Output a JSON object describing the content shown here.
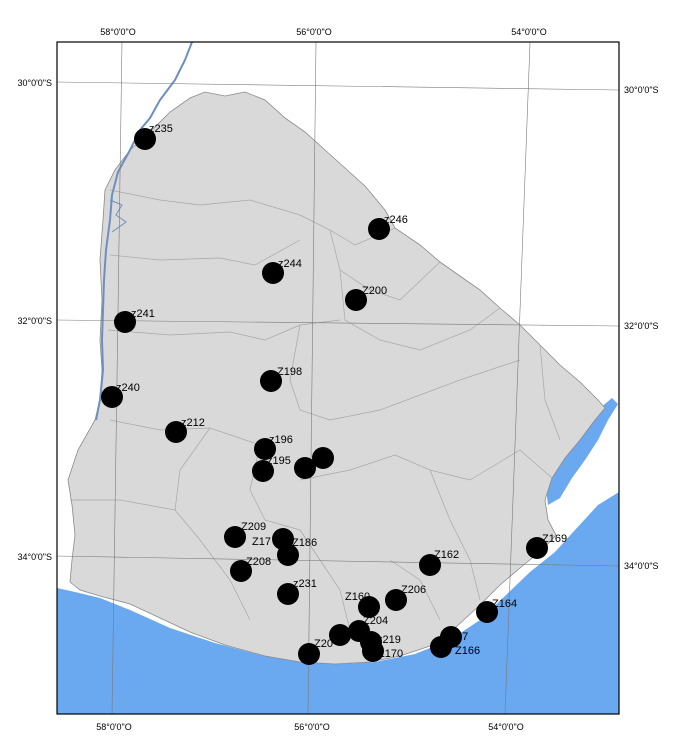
{
  "map": {
    "colors": {
      "water": "#6aa8f0",
      "land": "#d9d9d9",
      "outside": "#ffffff",
      "border": "#8a8a8a",
      "river": "#6d8fbf",
      "frame": "#000000",
      "marker": "#000000"
    },
    "ticks": {
      "top": [
        "58°0'0\"O",
        "56°0'0\"O",
        "54°0'0\"O"
      ],
      "bottom": [
        "58°0'0\"O",
        "56°0'0\"O",
        "54°0'0\"O"
      ],
      "left": [
        "30°0'0\"S",
        "32°0'0\"S",
        "34°0'0\"S"
      ],
      "right": [
        "30°0'0\"S",
        "32°0'0\"S",
        "34°0'0\"S"
      ]
    },
    "sites": [
      {
        "label": "z235"
      },
      {
        "label": "z246"
      },
      {
        "label": "z244"
      },
      {
        "label": "Z200"
      },
      {
        "label": "z241"
      },
      {
        "label": "Z198"
      },
      {
        "label": "z240"
      },
      {
        "label": "z212"
      },
      {
        "label": "z196"
      },
      {
        "label": "z195"
      },
      {
        "label": "Z209"
      },
      {
        "label": "Z17"
      },
      {
        "label": "Z186"
      },
      {
        "label": "Z208"
      },
      {
        "label": "z231"
      },
      {
        "label": "Z162"
      },
      {
        "label": "Z169"
      },
      {
        "label": "Z206"
      },
      {
        "label": "Z160"
      },
      {
        "label": "Z164"
      },
      {
        "label": "Z204"
      },
      {
        "label": "z219"
      },
      {
        "label": "Z170"
      },
      {
        "label": "Z20"
      },
      {
        "label": "Z166"
      },
      {
        "label": "67"
      },
      {
        "label": ""
      },
      {
        "label": ""
      },
      {
        "label": ""
      },
      {
        "label": ""
      }
    ]
  }
}
